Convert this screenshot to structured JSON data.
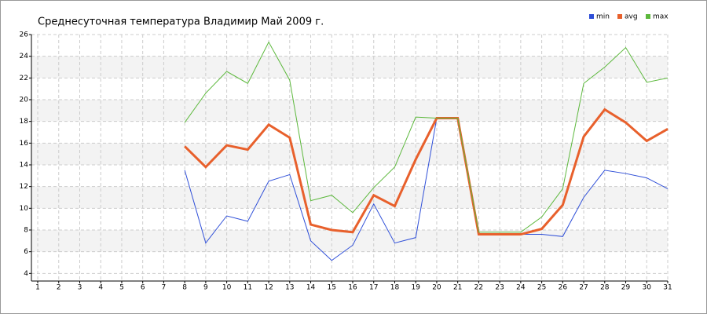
{
  "chart_data": {
    "type": "line",
    "title": "Среднесуточная температура Владимир  Май 2009 г.",
    "x": [
      1,
      2,
      3,
      4,
      5,
      6,
      7,
      8,
      9,
      10,
      11,
      12,
      13,
      14,
      15,
      16,
      17,
      18,
      19,
      20,
      21,
      22,
      23,
      24,
      25,
      26,
      27,
      28,
      29,
      30,
      31
    ],
    "xlim": [
      0.7,
      31
    ],
    "ylim": [
      3.3,
      26
    ],
    "yticks": [
      4,
      6,
      8,
      10,
      12,
      14,
      16,
      18,
      20,
      22,
      24,
      26
    ],
    "grid": true,
    "legend": "top-right",
    "series": [
      {
        "name": "min",
        "color": "#2f4fd8",
        "values": [
          null,
          null,
          null,
          null,
          null,
          null,
          null,
          13.5,
          6.8,
          9.3,
          8.8,
          12.5,
          13.1,
          7.0,
          5.2,
          6.6,
          10.4,
          6.8,
          7.3,
          18.3,
          18.3,
          7.6,
          7.6,
          7.6,
          7.6,
          7.4,
          11.0,
          13.5,
          13.2,
          12.8,
          11.8
        ]
      },
      {
        "name": "avg",
        "color": "#e8602c",
        "values": [
          null,
          null,
          null,
          null,
          null,
          null,
          null,
          15.7,
          13.8,
          15.8,
          15.4,
          17.7,
          16.5,
          8.5,
          8.0,
          7.8,
          11.2,
          10.2,
          14.5,
          18.3,
          18.3,
          7.6,
          7.6,
          7.6,
          8.1,
          10.3,
          16.6,
          19.1,
          17.9,
          16.2,
          17.3
        ]
      },
      {
        "name": "max",
        "color": "#5cb83c",
        "values": [
          null,
          null,
          null,
          null,
          null,
          null,
          null,
          17.9,
          20.6,
          22.6,
          21.5,
          25.3,
          21.8,
          10.7,
          11.2,
          9.6,
          11.9,
          13.8,
          18.4,
          18.3,
          18.3,
          7.8,
          7.8,
          7.8,
          9.2,
          11.8,
          21.5,
          23.0,
          24.8,
          21.6,
          22.0
        ]
      }
    ]
  }
}
